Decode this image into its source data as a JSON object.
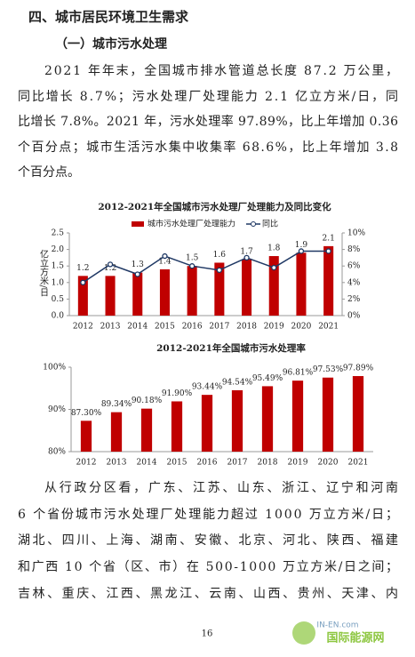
{
  "heading": "四、城市居民环境卫生需求",
  "subheading": "（一）城市污水处理",
  "paragraphs": [
    [
      "2021 年年末，全国城市排水管道总长度 87.2 万公里，",
      "同比增长 8.7%；污水处理厂处理能力 2.1 亿立方米/日，同",
      "比增长 7.8%。2021 年，污水处理率 97.89%，比上年增加 0.36",
      "个百分点；城市生活污水集中收集率 68.6%，比上年增加 3.8",
      "个百分点。"
    ],
    [
      "从行政分区看，广东、江苏、山东、浙江、辽宁和河南",
      "6 个省份城市污水处理厂处理能力超过 1000 万立方米/日；",
      "湖北、四川、上海、湖南、安徽、北京、河北、陕西、福建",
      "和广西 10 个省（区、市）在 500-1000 万立方米/日之间；",
      "吉林、重庆、江西、黑龙江、云南、山西、贵州、天津、内"
    ]
  ],
  "page_number": "16",
  "watermark": [
    "IN-EN.com",
    "国际能源网"
  ],
  "chart_data": [
    {
      "type": "bar",
      "title": "2012-2021年全国城市污水处理厂处理能力及同比变化",
      "ylabel": "亿立方米/日",
      "categories": [
        "2012",
        "2013",
        "2014",
        "2015",
        "2016",
        "2017",
        "2018",
        "2019",
        "2020",
        "2021"
      ],
      "series": [
        {
          "name": "城市污水处理厂处理能力",
          "type": "bar",
          "color": "#c00000",
          "values": [
            1.2,
            1.2,
            1.3,
            1.4,
            1.5,
            1.6,
            1.7,
            1.8,
            1.9,
            2.1
          ]
        },
        {
          "name": "同比",
          "type": "line",
          "axis": "y2",
          "color": "#1f3864",
          "values": [
            4.0,
            6.2,
            5.0,
            7.2,
            6.0,
            5.5,
            7.0,
            5.8,
            7.8,
            7.8
          ]
        }
      ],
      "ylim": [
        0,
        2.5
      ],
      "yticks": [
        {
          "value": 0,
          "label": "0.0"
        },
        {
          "value": 0.5,
          "label": "0.5"
        },
        {
          "value": 1,
          "label": "1.0"
        },
        {
          "value": 1.5,
          "label": "1.5"
        },
        {
          "value": 2,
          "label": "2.0"
        },
        {
          "value": 2.5,
          "label": "2.5"
        }
      ],
      "y2lim": [
        0,
        10
      ],
      "y2ticks": [
        {
          "value": 0,
          "label": "0%"
        },
        {
          "value": 2,
          "label": "2%"
        },
        {
          "value": 4,
          "label": "4%"
        },
        {
          "value": 6,
          "label": "6%"
        },
        {
          "value": 8,
          "label": "8%"
        },
        {
          "value": 10,
          "label": "10%"
        }
      ],
      "legend": "top"
    },
    {
      "type": "bar",
      "title": "2012-2021年全国城市污水处理率",
      "categories": [
        "2012",
        "2013",
        "2014",
        "2015",
        "2016",
        "2017",
        "2018",
        "2019",
        "2020",
        "2021"
      ],
      "series": [
        {
          "type": "bar",
          "color": "#c00000",
          "values": [
            87.3,
            89.34,
            90.18,
            91.9,
            93.44,
            94.54,
            95.49,
            96.81,
            97.53,
            97.89
          ],
          "value_labels": [
            "87.30%",
            "89.34%",
            "90.18%",
            "91.90%",
            "93.44%",
            "94.54%",
            "95.49%",
            "96.81%",
            "97.53%",
            "97.89%"
          ]
        }
      ],
      "ylim": [
        80,
        100
      ],
      "yticks": [
        {
          "value": 80,
          "label": "80%"
        },
        {
          "value": 90,
          "label": "90%"
        },
        {
          "value": 100,
          "label": "100%"
        }
      ]
    }
  ]
}
